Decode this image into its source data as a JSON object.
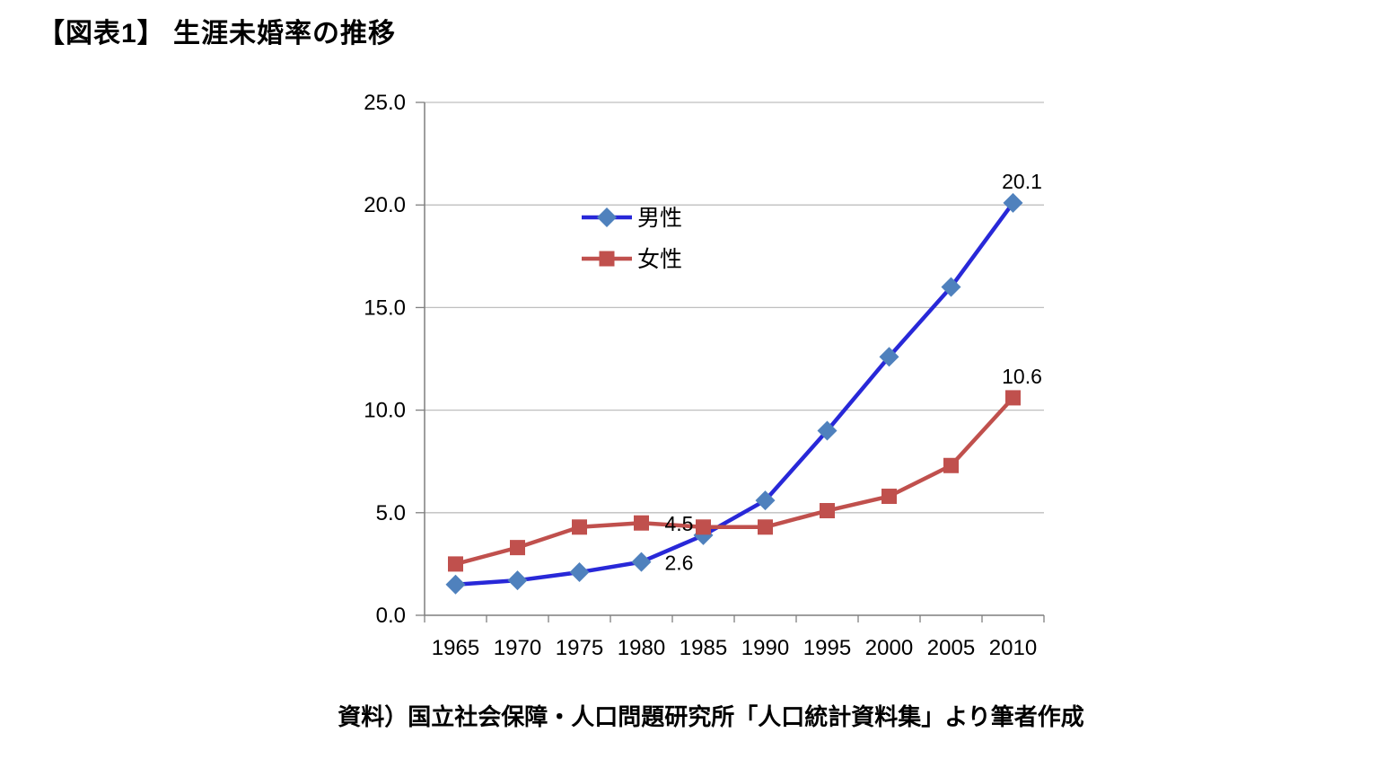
{
  "chart_data": {
    "type": "line",
    "title": "【図表1】 生涯未婚率の推移",
    "categories": [
      "1965",
      "1970",
      "1975",
      "1980",
      "1985",
      "1990",
      "1995",
      "2000",
      "2005",
      "2010"
    ],
    "series": [
      {
        "name": "男性",
        "marker": "diamond",
        "line_color": "#2828D8",
        "marker_color": "#4F81BD",
        "values": [
          1.5,
          1.7,
          2.1,
          2.6,
          3.9,
          5.6,
          9.0,
          12.6,
          16.0,
          20.1
        ]
      },
      {
        "name": "女性",
        "marker": "square",
        "line_color": "#C0504D",
        "marker_color": "#C0504D",
        "values": [
          2.5,
          3.3,
          4.3,
          4.5,
          4.3,
          4.3,
          5.1,
          5.8,
          7.3,
          10.6
        ]
      }
    ],
    "xlabel": "",
    "ylabel": "",
    "ylim": [
      0,
      25
    ],
    "ytick_step": 5,
    "ytick_labels": [
      "0.0",
      "5.0",
      "10.0",
      "15.0",
      "20.0",
      "25.0"
    ],
    "grid": true,
    "legend_position": "inside-upper-center",
    "data_labels": [
      {
        "series": 0,
        "index": 3,
        "text": "2.6",
        "placement": "right"
      },
      {
        "series": 0,
        "index": 9,
        "text": "20.1",
        "placement": "above"
      },
      {
        "series": 1,
        "index": 3,
        "text": "4.5",
        "placement": "right"
      },
      {
        "series": 1,
        "index": 9,
        "text": "10.6",
        "placement": "above"
      }
    ]
  },
  "source_note": "資料）国立社会保障・人口問題研究所「人口統計資料集」より筆者作成",
  "colors": {
    "gridline": "#BFBFBF",
    "axis": "#7F7F7F",
    "text": "#000000",
    "background": "#FFFFFF"
  }
}
